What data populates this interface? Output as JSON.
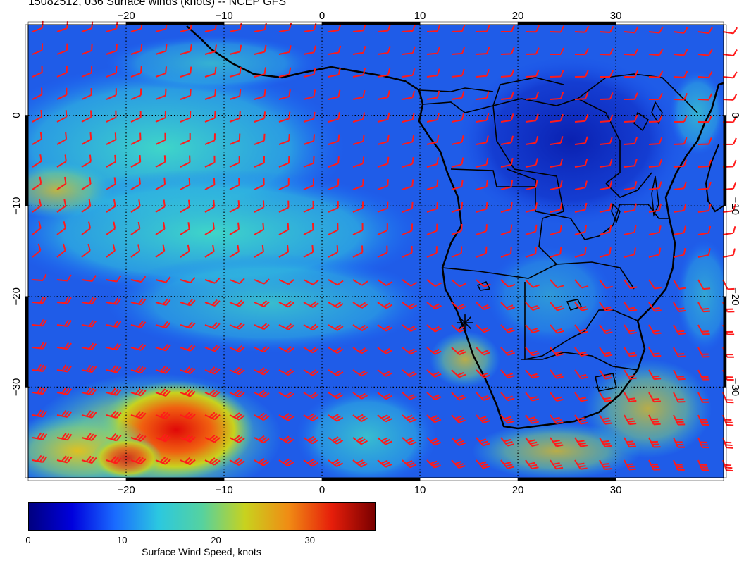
{
  "title": "15082512, 036 Surface winds (knots) -- NCEP GFS",
  "map": {
    "lon_range": [
      -30,
      41
    ],
    "lat_range": [
      -40,
      10
    ],
    "lon_ticks": [
      {
        "value": -20,
        "label": "−20"
      },
      {
        "value": -10,
        "label": "−10"
      },
      {
        "value": 0,
        "label": "0"
      },
      {
        "value": 10,
        "label": "10"
      },
      {
        "value": 20,
        "label": "20"
      },
      {
        "value": 30,
        "label": "30"
      }
    ],
    "lat_ticks": [
      {
        "value": 0,
        "label": "0"
      },
      {
        "value": -10,
        "label": "−10"
      },
      {
        "value": -20,
        "label": "−20"
      },
      {
        "value": -30,
        "label": "−30"
      }
    ],
    "grid": true,
    "marker": {
      "lon": 14.6,
      "lat": -22.9,
      "symbol": "asterisk"
    },
    "barb_color": "#ff1a1a",
    "coast_color": "#000000"
  },
  "colorbar": {
    "min": 0,
    "max": 37,
    "ticks": [
      {
        "value": 0,
        "label": "0"
      },
      {
        "value": 10,
        "label": "10"
      },
      {
        "value": 20,
        "label": "20"
      },
      {
        "value": 30,
        "label": "30"
      }
    ],
    "label": "Surface Wind Speed, knots",
    "colors": [
      "#000080",
      "#0000dd",
      "#1a6cff",
      "#2bc8e0",
      "#55d2a0",
      "#c8d21e",
      "#f08c14",
      "#e61e0a",
      "#7a0000"
    ]
  }
}
